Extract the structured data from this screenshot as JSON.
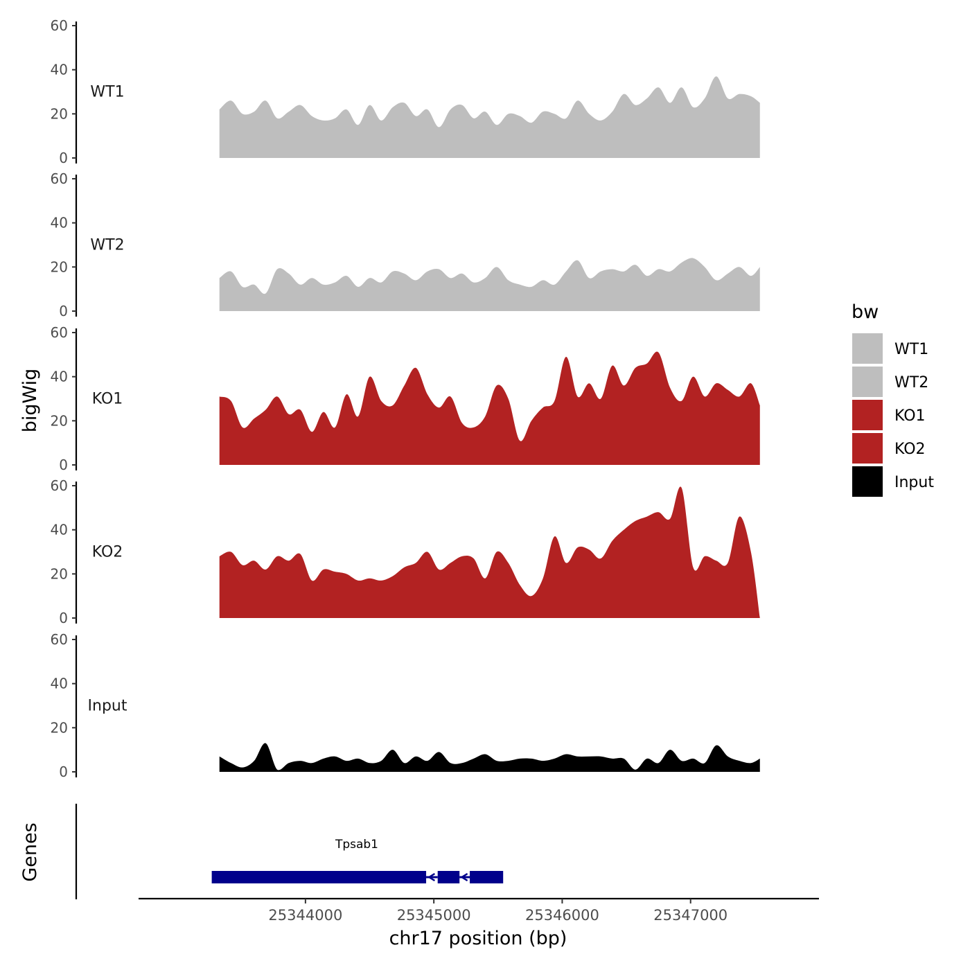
{
  "chart_data": {
    "type": "area",
    "chromosome": "chr17",
    "xlabel": "chr17 position (bp)",
    "ylabel": "bigWig",
    "xlim": [
      25342700,
      25348000
    ],
    "x_ticks": [
      25344000,
      25345000,
      25346000,
      25347000
    ],
    "x_tick_labels": [
      "25344000",
      "25345000",
      "25346000",
      "25347000"
    ],
    "ylim": [
      0,
      60
    ],
    "y_ticks": [
      0,
      20,
      40,
      60
    ],
    "y_tick_labels": [
      "0",
      "20",
      "40",
      "60"
    ],
    "legend": {
      "title": "bw",
      "position": "right",
      "entries": [
        {
          "label": "WT1",
          "color": "#BEBEBE"
        },
        {
          "label": "WT2",
          "color": "#BEBEBE"
        },
        {
          "label": "KO1",
          "color": "#B22222"
        },
        {
          "label": "KO2",
          "color": "#B22222"
        },
        {
          "label": "Input",
          "color": "#000000"
        }
      ]
    },
    "series": [
      {
        "name": "WT1",
        "color": "#BEBEBE",
        "x": [
          25343330,
          25343420,
          25343510,
          25343600,
          25343690,
          25343780,
          25343870,
          25343960,
          25344050,
          25344140,
          25344230,
          25344320,
          25344410,
          25344500,
          25344590,
          25344680,
          25344770,
          25344860,
          25344950,
          25345040,
          25345130,
          25345220,
          25345310,
          25345400,
          25345490,
          25345580,
          25345670,
          25345760,
          25345850,
          25345940,
          25346030,
          25346120,
          25346210,
          25346300,
          25346390,
          25346480,
          25346570,
          25346660,
          25346750,
          25346840,
          25346930,
          25347020,
          25347110,
          25347200,
          25347290,
          25347380,
          25347470,
          25347540
        ],
        "values": [
          22,
          26,
          20,
          21,
          26,
          18,
          21,
          24,
          19,
          17,
          18,
          22,
          15,
          24,
          17,
          23,
          25,
          19,
          22,
          14,
          22,
          24,
          18,
          21,
          15,
          20,
          19,
          16,
          21,
          20,
          18,
          26,
          20,
          17,
          21,
          29,
          24,
          27,
          32,
          25,
          32,
          23,
          27,
          37,
          27,
          29,
          28,
          25
        ]
      },
      {
        "name": "WT2",
        "color": "#BEBEBE",
        "x": [
          25343330,
          25343420,
          25343510,
          25343600,
          25343690,
          25343780,
          25343870,
          25343960,
          25344050,
          25344140,
          25344230,
          25344320,
          25344410,
          25344500,
          25344590,
          25344680,
          25344770,
          25344860,
          25344950,
          25345040,
          25345130,
          25345220,
          25345310,
          25345400,
          25345490,
          25345580,
          25345670,
          25345760,
          25345850,
          25345940,
          25346030,
          25346120,
          25346210,
          25346300,
          25346390,
          25346480,
          25346570,
          25346660,
          25346750,
          25346840,
          25346930,
          25347020,
          25347110,
          25347200,
          25347290,
          25347380,
          25347470,
          25347540
        ],
        "values": [
          15,
          18,
          11,
          12,
          8,
          19,
          17,
          12,
          15,
          12,
          13,
          16,
          11,
          15,
          13,
          18,
          17,
          14,
          18,
          19,
          15,
          17,
          13,
          15,
          20,
          14,
          12,
          11,
          14,
          12,
          18,
          23,
          15,
          18,
          19,
          18,
          21,
          16,
          19,
          18,
          22,
          24,
          20,
          14,
          17,
          20,
          16,
          20
        ]
      },
      {
        "name": "KO1",
        "color": "#B22222",
        "x": [
          25343330,
          25343420,
          25343510,
          25343600,
          25343690,
          25343780,
          25343870,
          25343960,
          25344050,
          25344140,
          25344230,
          25344320,
          25344410,
          25344500,
          25344590,
          25344680,
          25344770,
          25344860,
          25344950,
          25345040,
          25345130,
          25345220,
          25345310,
          25345400,
          25345490,
          25345580,
          25345670,
          25345760,
          25345850,
          25345940,
          25346030,
          25346120,
          25346210,
          25346300,
          25346390,
          25346480,
          25346570,
          25346660,
          25346750,
          25346840,
          25346930,
          25347020,
          25347110,
          25347200,
          25347290,
          25347380,
          25347470,
          25347540
        ],
        "values": [
          31,
          29,
          17,
          21,
          25,
          31,
          23,
          25,
          15,
          24,
          17,
          32,
          22,
          40,
          29,
          27,
          36,
          44,
          32,
          26,
          31,
          19,
          17,
          22,
          36,
          30,
          11,
          20,
          26,
          29,
          49,
          31,
          37,
          30,
          45,
          36,
          44,
          46,
          51,
          35,
          29,
          40,
          31,
          37,
          34,
          31,
          37,
          27
        ]
      },
      {
        "name": "KO2",
        "color": "#B22222",
        "x": [
          25343330,
          25343420,
          25343510,
          25343600,
          25343690,
          25343780,
          25343870,
          25343960,
          25344050,
          25344140,
          25344230,
          25344320,
          25344410,
          25344500,
          25344590,
          25344680,
          25344770,
          25344860,
          25344950,
          25345040,
          25345130,
          25345220,
          25345310,
          25345400,
          25345490,
          25345580,
          25345670,
          25345760,
          25345850,
          25345940,
          25346030,
          25346120,
          25346210,
          25346300,
          25346390,
          25346480,
          25346570,
          25346660,
          25346750,
          25346840,
          25346930,
          25347020,
          25347110,
          25347200,
          25347290,
          25347380,
          25347470,
          25347540
        ],
        "values": [
          28,
          30,
          24,
          26,
          22,
          28,
          26,
          29,
          17,
          22,
          21,
          20,
          17,
          18,
          17,
          19,
          23,
          25,
          30,
          22,
          25,
          28,
          27,
          18,
          30,
          25,
          15,
          10,
          18,
          37,
          25,
          32,
          31,
          27,
          35,
          40,
          44,
          46,
          48,
          45,
          59,
          23,
          28,
          26,
          25,
          46,
          30,
          0
        ]
      },
      {
        "name": "Input",
        "color": "#000000",
        "x": [
          25343330,
          25343420,
          25343510,
          25343600,
          25343690,
          25343780,
          25343870,
          25343960,
          25344050,
          25344140,
          25344230,
          25344320,
          25344410,
          25344500,
          25344590,
          25344680,
          25344770,
          25344860,
          25344950,
          25345040,
          25345130,
          25345220,
          25345310,
          25345400,
          25345490,
          25345580,
          25345670,
          25345760,
          25345850,
          25345940,
          25346030,
          25346120,
          25346210,
          25346300,
          25346390,
          25346480,
          25346570,
          25346660,
          25346750,
          25346840,
          25346930,
          25347020,
          25347110,
          25347200,
          25347290,
          25347380,
          25347470,
          25347540
        ],
        "values": [
          7,
          4,
          2,
          5,
          13,
          1,
          4,
          5,
          4,
          6,
          7,
          5,
          6,
          4,
          5,
          10,
          4,
          7,
          5,
          9,
          4,
          4,
          6,
          8,
          5,
          5,
          6,
          6,
          5,
          6,
          8,
          7,
          7,
          7,
          6,
          6,
          1,
          6,
          4,
          10,
          5,
          6,
          4,
          12,
          7,
          5,
          4,
          6
        ]
      }
    ],
    "genes_track": {
      "label": "Genes",
      "gene": "Tpsab1",
      "color": "#00008B",
      "exons": [
        [
          25343270,
          25344940
        ],
        [
          25345030,
          25345200
        ],
        [
          25345280,
          25345540
        ]
      ],
      "introns": [
        [
          25344940,
          25345030
        ],
        [
          25345200,
          25345280
        ]
      ],
      "strand": "-"
    }
  }
}
